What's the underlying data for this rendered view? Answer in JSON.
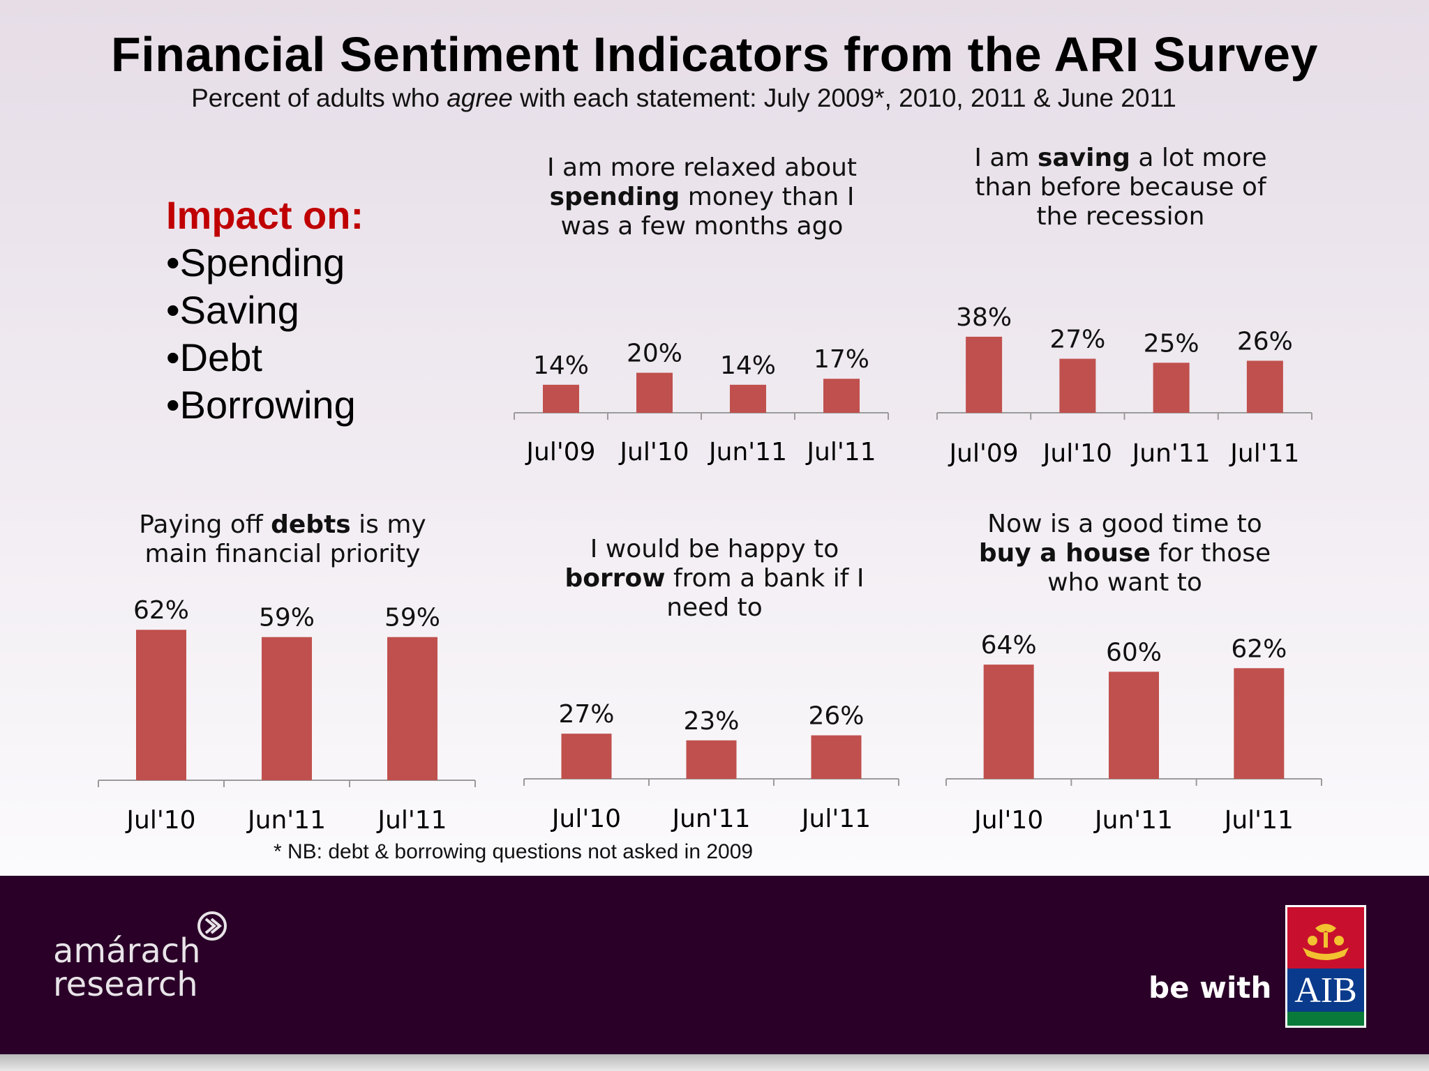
{
  "title": "Financial Sentiment Indicators from the ARI Survey",
  "subtitle": {
    "before": "Percent of adults who ",
    "emph": "agree",
    "after": " with each statement: July 2009*, 2010, 2011 & June 2011"
  },
  "impact": {
    "heading": "Impact on:",
    "items": [
      "•Spending",
      "•Saving",
      "•Debt",
      "•Borrowing"
    ]
  },
  "questions": {
    "spending": {
      "l1": "I am more relaxed about",
      "bold": "spending",
      "l2rest": " money than I",
      "l3": "was a few months ago"
    },
    "saving": {
      "l1a": "I am ",
      "bold": "saving",
      "l1b": " a lot more",
      "l2": "than before because of",
      "l3": "the recession"
    },
    "debts": {
      "l1a": "Paying  off ",
      "bold": "debts",
      "l1b": " is my",
      "l2": "main financial priority"
    },
    "borrow": {
      "l1": "I would be happy to",
      "bold": "borrow",
      "l2rest": " from a bank if I",
      "l3": "need to"
    },
    "house": {
      "l1": "Now is a good time to",
      "bold": "buy a house",
      "l2rest": " for those",
      "l3": "who want to"
    }
  },
  "bar_color": "#c0504d",
  "chart_data": [
    {
      "type": "bar",
      "id": "spending",
      "categories": [
        "Jul'09",
        "Jul'10",
        "Jun'11",
        "Jul'11"
      ],
      "values": [
        14,
        20,
        14,
        17
      ],
      "labels": [
        "14%",
        "20%",
        "14%",
        "17%"
      ]
    },
    {
      "type": "bar",
      "id": "saving",
      "categories": [
        "Jul'09",
        "Jul'10",
        "Jun'11",
        "Jul'11"
      ],
      "values": [
        38,
        27,
        25,
        26
      ],
      "labels": [
        "38%",
        "27%",
        "25%",
        "26%"
      ]
    },
    {
      "type": "bar",
      "id": "debts",
      "categories": [
        "Jul'10",
        "Jun'11",
        "Jul'11"
      ],
      "values": [
        62,
        59,
        59
      ],
      "labels": [
        "62%",
        "59%",
        "59%"
      ]
    },
    {
      "type": "bar",
      "id": "borrow",
      "categories": [
        "Jul'10",
        "Jun'11",
        "Jul'11"
      ],
      "values": [
        27,
        23,
        26
      ],
      "labels": [
        "27%",
        "23%",
        "26%"
      ]
    },
    {
      "type": "bar",
      "id": "house",
      "categories": [
        "Jul'10",
        "Jun'11",
        "Jul'11"
      ],
      "values": [
        64,
        60,
        62
      ],
      "labels": [
        "64%",
        "60%",
        "62%"
      ]
    }
  ],
  "note": "* NB: debt & borrowing questions not asked in 2009",
  "footer": {
    "brand_line1": "amárach",
    "brand_line2": "research",
    "tagline": "be with",
    "bank": "AIB"
  }
}
